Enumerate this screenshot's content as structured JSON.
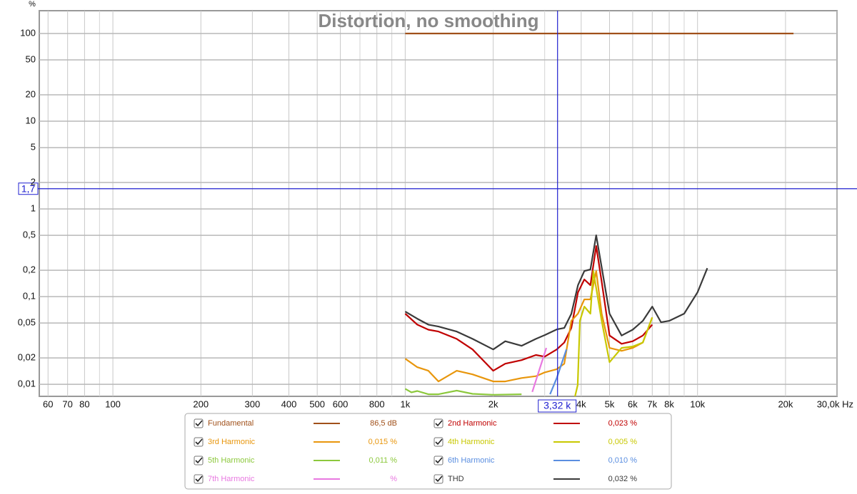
{
  "chart_data": {
    "type": "line",
    "title": "Distortion, no smoothing",
    "y_unit": "%",
    "xscale": "log",
    "yscale": "log",
    "grid": true,
    "xlim": [
      56,
      30000
    ],
    "ylim": [
      0.0073,
      182
    ],
    "xticks": [
      60,
      70,
      80,
      100,
      200,
      300,
      400,
      500,
      600,
      800,
      {
        "value": 1000,
        "label": "1k"
      },
      {
        "value": 2000,
        "label": "2k"
      },
      {
        "value": 4000,
        "label": "4k"
      },
      {
        "value": 5000,
        "label": "5k"
      },
      {
        "value": 6000,
        "label": "6k"
      },
      {
        "value": 7000,
        "label": "7k"
      },
      {
        "value": 8000,
        "label": "8k"
      },
      {
        "value": 10000,
        "label": "10k"
      },
      {
        "value": 20000,
        "label": "20k"
      },
      {
        "value": 30000,
        "label": "30,0k Hz"
      }
    ],
    "x_minor_grid": [
      90,
      700,
      900,
      3000,
      9000
    ],
    "yticks": [
      100,
      50,
      20,
      10,
      5,
      2,
      1,
      {
        "value": 0.5,
        "label": "0,5"
      },
      {
        "value": 0.2,
        "label": "0,2"
      },
      {
        "value": 0.1,
        "label": "0,1"
      },
      {
        "value": 0.05,
        "label": "0,05"
      },
      {
        "value": 0.02,
        "label": "0,02"
      },
      {
        "value": 0.01,
        "label": "0,01"
      }
    ],
    "cursor": {
      "x": 3320,
      "x_label": "3,32 k",
      "y": 1.7,
      "y_label": "1,7"
    },
    "series": [
      {
        "name": "Fundamental",
        "color": "#a0501a",
        "legend_value": "86,5 dB",
        "x": [
          1000,
          21300
        ],
        "values": [
          100,
          100
        ]
      },
      {
        "name": "2nd Harmonic",
        "color": "#c00000",
        "legend_value": "0,023 %",
        "x": [
          1000,
          1100,
          1200,
          1300,
          1500,
          1700,
          2000,
          2200,
          2500,
          2800,
          3000,
          3300,
          3500,
          3700,
          3900,
          4100,
          4300,
          4500,
          4700,
          5000,
          5500,
          6000,
          6500,
          7000
        ],
        "values": [
          0.064,
          0.048,
          0.042,
          0.04,
          0.033,
          0.025,
          0.0143,
          0.0172,
          0.0189,
          0.0216,
          0.0207,
          0.025,
          0.03,
          0.044,
          0.112,
          0.157,
          0.135,
          0.378,
          0.148,
          0.036,
          0.029,
          0.031,
          0.036,
          0.048
        ]
      },
      {
        "name": "3rd Harmonic",
        "color": "#e8960c",
        "legend_value": "0,015 %",
        "x": [
          1000,
          1100,
          1200,
          1300,
          1500,
          1700,
          2000,
          2200,
          2500,
          2800,
          3000,
          3300,
          3500,
          3700,
          3900,
          4100,
          4300,
          4500,
          4700,
          5000,
          5500,
          6000,
          6500,
          7000
        ],
        "values": [
          0.0196,
          0.0157,
          0.0143,
          0.0108,
          0.0143,
          0.013,
          0.0108,
          0.0108,
          0.0118,
          0.0124,
          0.0137,
          0.0149,
          0.0172,
          0.053,
          0.064,
          0.093,
          0.093,
          0.196,
          0.064,
          0.026,
          0.0241,
          0.026,
          0.03,
          0.058
        ]
      },
      {
        "name": "4th Harmonic",
        "color": "#c8c800",
        "legend_value": "0,005 %",
        "x": [
          3810,
          3890,
          3960,
          4100,
          4300,
          4400,
          4700,
          5000,
          5500,
          6000,
          6500,
          7000
        ],
        "values": [
          0.0073,
          0.0098,
          0.053,
          0.077,
          0.064,
          0.196,
          0.053,
          0.0179,
          0.026,
          0.027,
          0.03,
          0.058
        ]
      },
      {
        "name": "5th Harmonic",
        "color": "#8cc83c",
        "legend_value": "0,011 %",
        "x": [
          1000,
          1050,
          1100,
          1200,
          1300,
          1500,
          1700,
          2000,
          2500
        ],
        "values": [
          0.0089,
          0.0081,
          0.0084,
          0.0077,
          0.0077,
          0.0085,
          0.0078,
          0.0076,
          0.0077
        ]
      },
      {
        "name": "6th Harmonic",
        "color": "#5a8ee0",
        "legend_value": "0,010 %",
        "x": [
          3130,
          3300,
          3560
        ],
        "values": [
          0.0077,
          0.0118,
          0.025
        ]
      },
      {
        "name": "7th Harmonic",
        "color": "#e878e0",
        "legend_value": "%",
        "x": [
          2720,
          2870,
          3040
        ],
        "values": [
          0.0082,
          0.0143,
          0.026
        ]
      },
      {
        "name": "THD",
        "color": "#3a3a3a",
        "legend_value": "0,032 %",
        "x": [
          1000,
          1100,
          1200,
          1300,
          1500,
          1700,
          2000,
          2200,
          2500,
          2800,
          3000,
          3300,
          3500,
          3700,
          3900,
          4100,
          4300,
          4500,
          4700,
          5000,
          5500,
          6000,
          6500,
          7000,
          7500,
          8000,
          9000,
          10000,
          10800
        ],
        "values": [
          0.0675,
          0.056,
          0.048,
          0.0456,
          0.04,
          0.033,
          0.025,
          0.031,
          0.0275,
          0.033,
          0.0364,
          0.0423,
          0.0439,
          0.0638,
          0.135,
          0.196,
          0.204,
          0.5,
          0.216,
          0.064,
          0.036,
          0.042,
          0.053,
          0.077,
          0.051,
          0.053,
          0.064,
          0.112,
          0.211
        ]
      }
    ]
  }
}
